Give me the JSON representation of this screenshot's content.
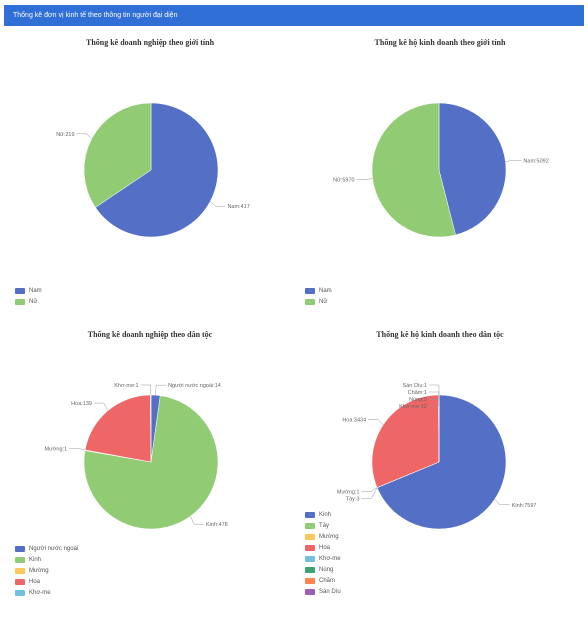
{
  "header": {
    "title": "Thống kê đơn vị kinh tế theo thông tin người đại diện"
  },
  "chart_data": [
    {
      "type": "pie",
      "title": "Thống kê doanh nghiệp theo giới tính",
      "labels": [
        "Nam",
        "Nữ"
      ],
      "values": [
        417,
        219
      ],
      "slice_labels": [
        "Nam:417",
        "Nữ:219"
      ],
      "colors": [
        "#5470c6",
        "#91cc75"
      ],
      "legend": [
        "Nam",
        "Nữ"
      ],
      "legend_position": "bottom-left"
    },
    {
      "type": "pie",
      "title": "Thống kê hộ kinh doanh theo giới tính",
      "labels": [
        "Nam",
        "Nữ"
      ],
      "values": [
        5092,
        5970
      ],
      "slice_labels": [
        "Nam:5092",
        "Nữ:5970"
      ],
      "colors": [
        "#5470c6",
        "#91cc75"
      ],
      "legend": [
        "Nam",
        "Nữ"
      ],
      "legend_position": "bottom-left"
    },
    {
      "type": "pie",
      "title": "Thống kê doanh nghiệp theo dân tộc",
      "labels": [
        "Người nước ngoài",
        "Kinh",
        "Mường",
        "Hoa",
        "Khơ-me"
      ],
      "values": [
        14,
        478,
        1,
        139,
        1
      ],
      "slice_labels": [
        "Người nước ngoài:14",
        "Kinh:478",
        "Mường:1",
        "Hoa:139",
        "Khơ-me:1"
      ],
      "colors": [
        "#5470c6",
        "#91cc75",
        "#fac858",
        "#ee6666",
        "#73c0de"
      ],
      "legend": [
        "Người nước ngoài",
        "Kinh",
        "Mường",
        "Hoa",
        "Khơ-me"
      ],
      "legend_position": "bottom-left"
    },
    {
      "type": "pie",
      "title": "Thống kê hộ kinh doanh theo dân tộc",
      "labels": [
        "Kinh",
        "Tày",
        "Mường",
        "Hoa",
        "Khơ-me",
        "Nùng",
        "Chăm",
        "Sán Dìu"
      ],
      "values": [
        7597,
        3,
        1,
        3434,
        10,
        3,
        1,
        1
      ],
      "slice_labels": [
        "Kinh:7597",
        "Tày:3",
        "Mường:1",
        "Hoa:3434",
        "Khơ-me:10",
        "Nùng:3",
        "Chăm:1",
        "Sán Dìu:1"
      ],
      "colors": [
        "#5470c6",
        "#91cc75",
        "#fac858",
        "#ee6666",
        "#73c0de",
        "#3ba272",
        "#fc8452",
        "#9a60b4"
      ],
      "legend": [
        "Kinh",
        "Tày",
        "Mường",
        "Hoa",
        "Khơ-me",
        "Nùng",
        "Chăm",
        "Sán Dìu"
      ],
      "legend_position": "bottom-left"
    }
  ]
}
